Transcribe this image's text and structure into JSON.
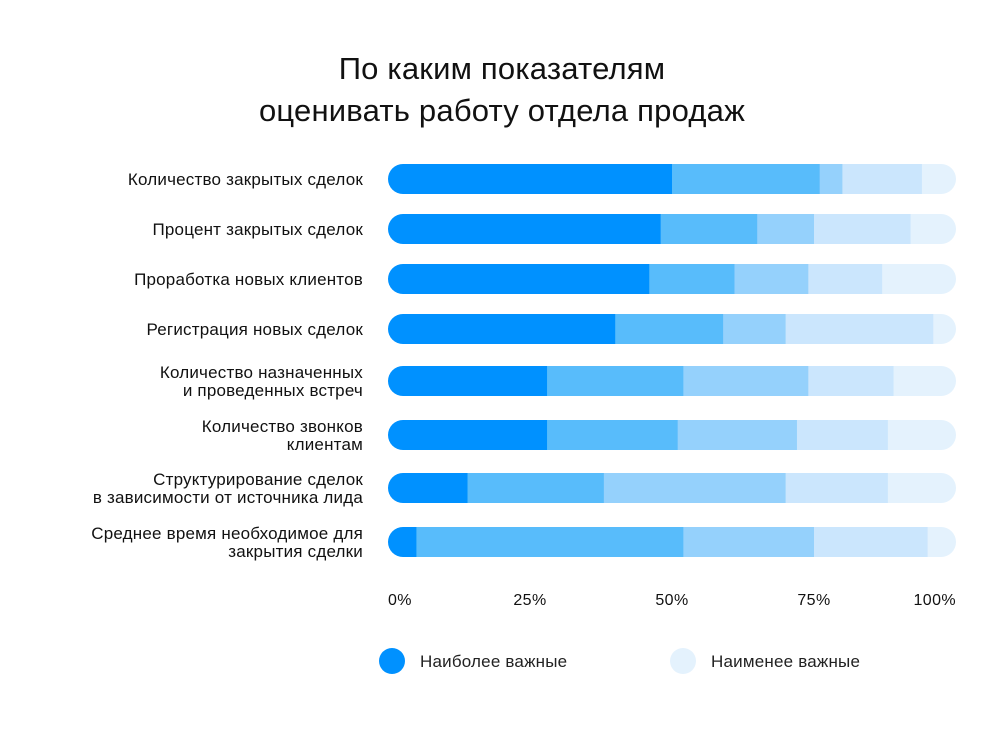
{
  "chart_data": {
    "type": "bar",
    "orientation": "horizontal",
    "stacked": true,
    "title_lines": [
      "По каким показателям",
      "оценивать работу отдела продаж"
    ],
    "categories": [
      [
        "Количество закрытых сделок"
      ],
      [
        "Процент закрытых сделок"
      ],
      [
        "Проработка новых клиентов"
      ],
      [
        "Регистрация новых сделок"
      ],
      [
        "Количество назначенных",
        "и проведенных встреч"
      ],
      [
        "Количество звонков",
        "клиентам"
      ],
      [
        "Структурирование сделок",
        "в зависимости от источника лида"
      ],
      [
        "Среднее время необходимое для",
        "закрытия сделки"
      ]
    ],
    "series": [
      {
        "name": "rank-1",
        "color": "#0091ff",
        "values": [
          50,
          48,
          46,
          40,
          28,
          28,
          14,
          5
        ]
      },
      {
        "name": "rank-2",
        "color": "#58bcfb",
        "values": [
          26,
          17,
          15,
          19,
          24,
          23,
          24,
          47
        ]
      },
      {
        "name": "rank-3",
        "color": "#95d1fc",
        "values": [
          4,
          10,
          13,
          11,
          22,
          21,
          32,
          23
        ]
      },
      {
        "name": "rank-4",
        "color": "#cbe6fd",
        "values": [
          14,
          17,
          13,
          26,
          15,
          16,
          18,
          20
        ]
      },
      {
        "name": "rank-5",
        "color": "#e4f2fd",
        "values": [
          6,
          8,
          13,
          4,
          11,
          12,
          12,
          5
        ]
      }
    ],
    "xaxis": {
      "ticks": [
        0,
        25,
        50,
        75,
        100
      ],
      "tick_labels": [
        "0%",
        "25%",
        "50%",
        "75%",
        "100%"
      ],
      "xlim": [
        0,
        100
      ]
    },
    "legend": {
      "placement": "bottom",
      "items": [
        {
          "label": "Наиболее важные",
          "color": "#0091ff"
        },
        {
          "label": "Наименее важные",
          "color": "#e4f2fd"
        }
      ]
    },
    "grid": false
  }
}
